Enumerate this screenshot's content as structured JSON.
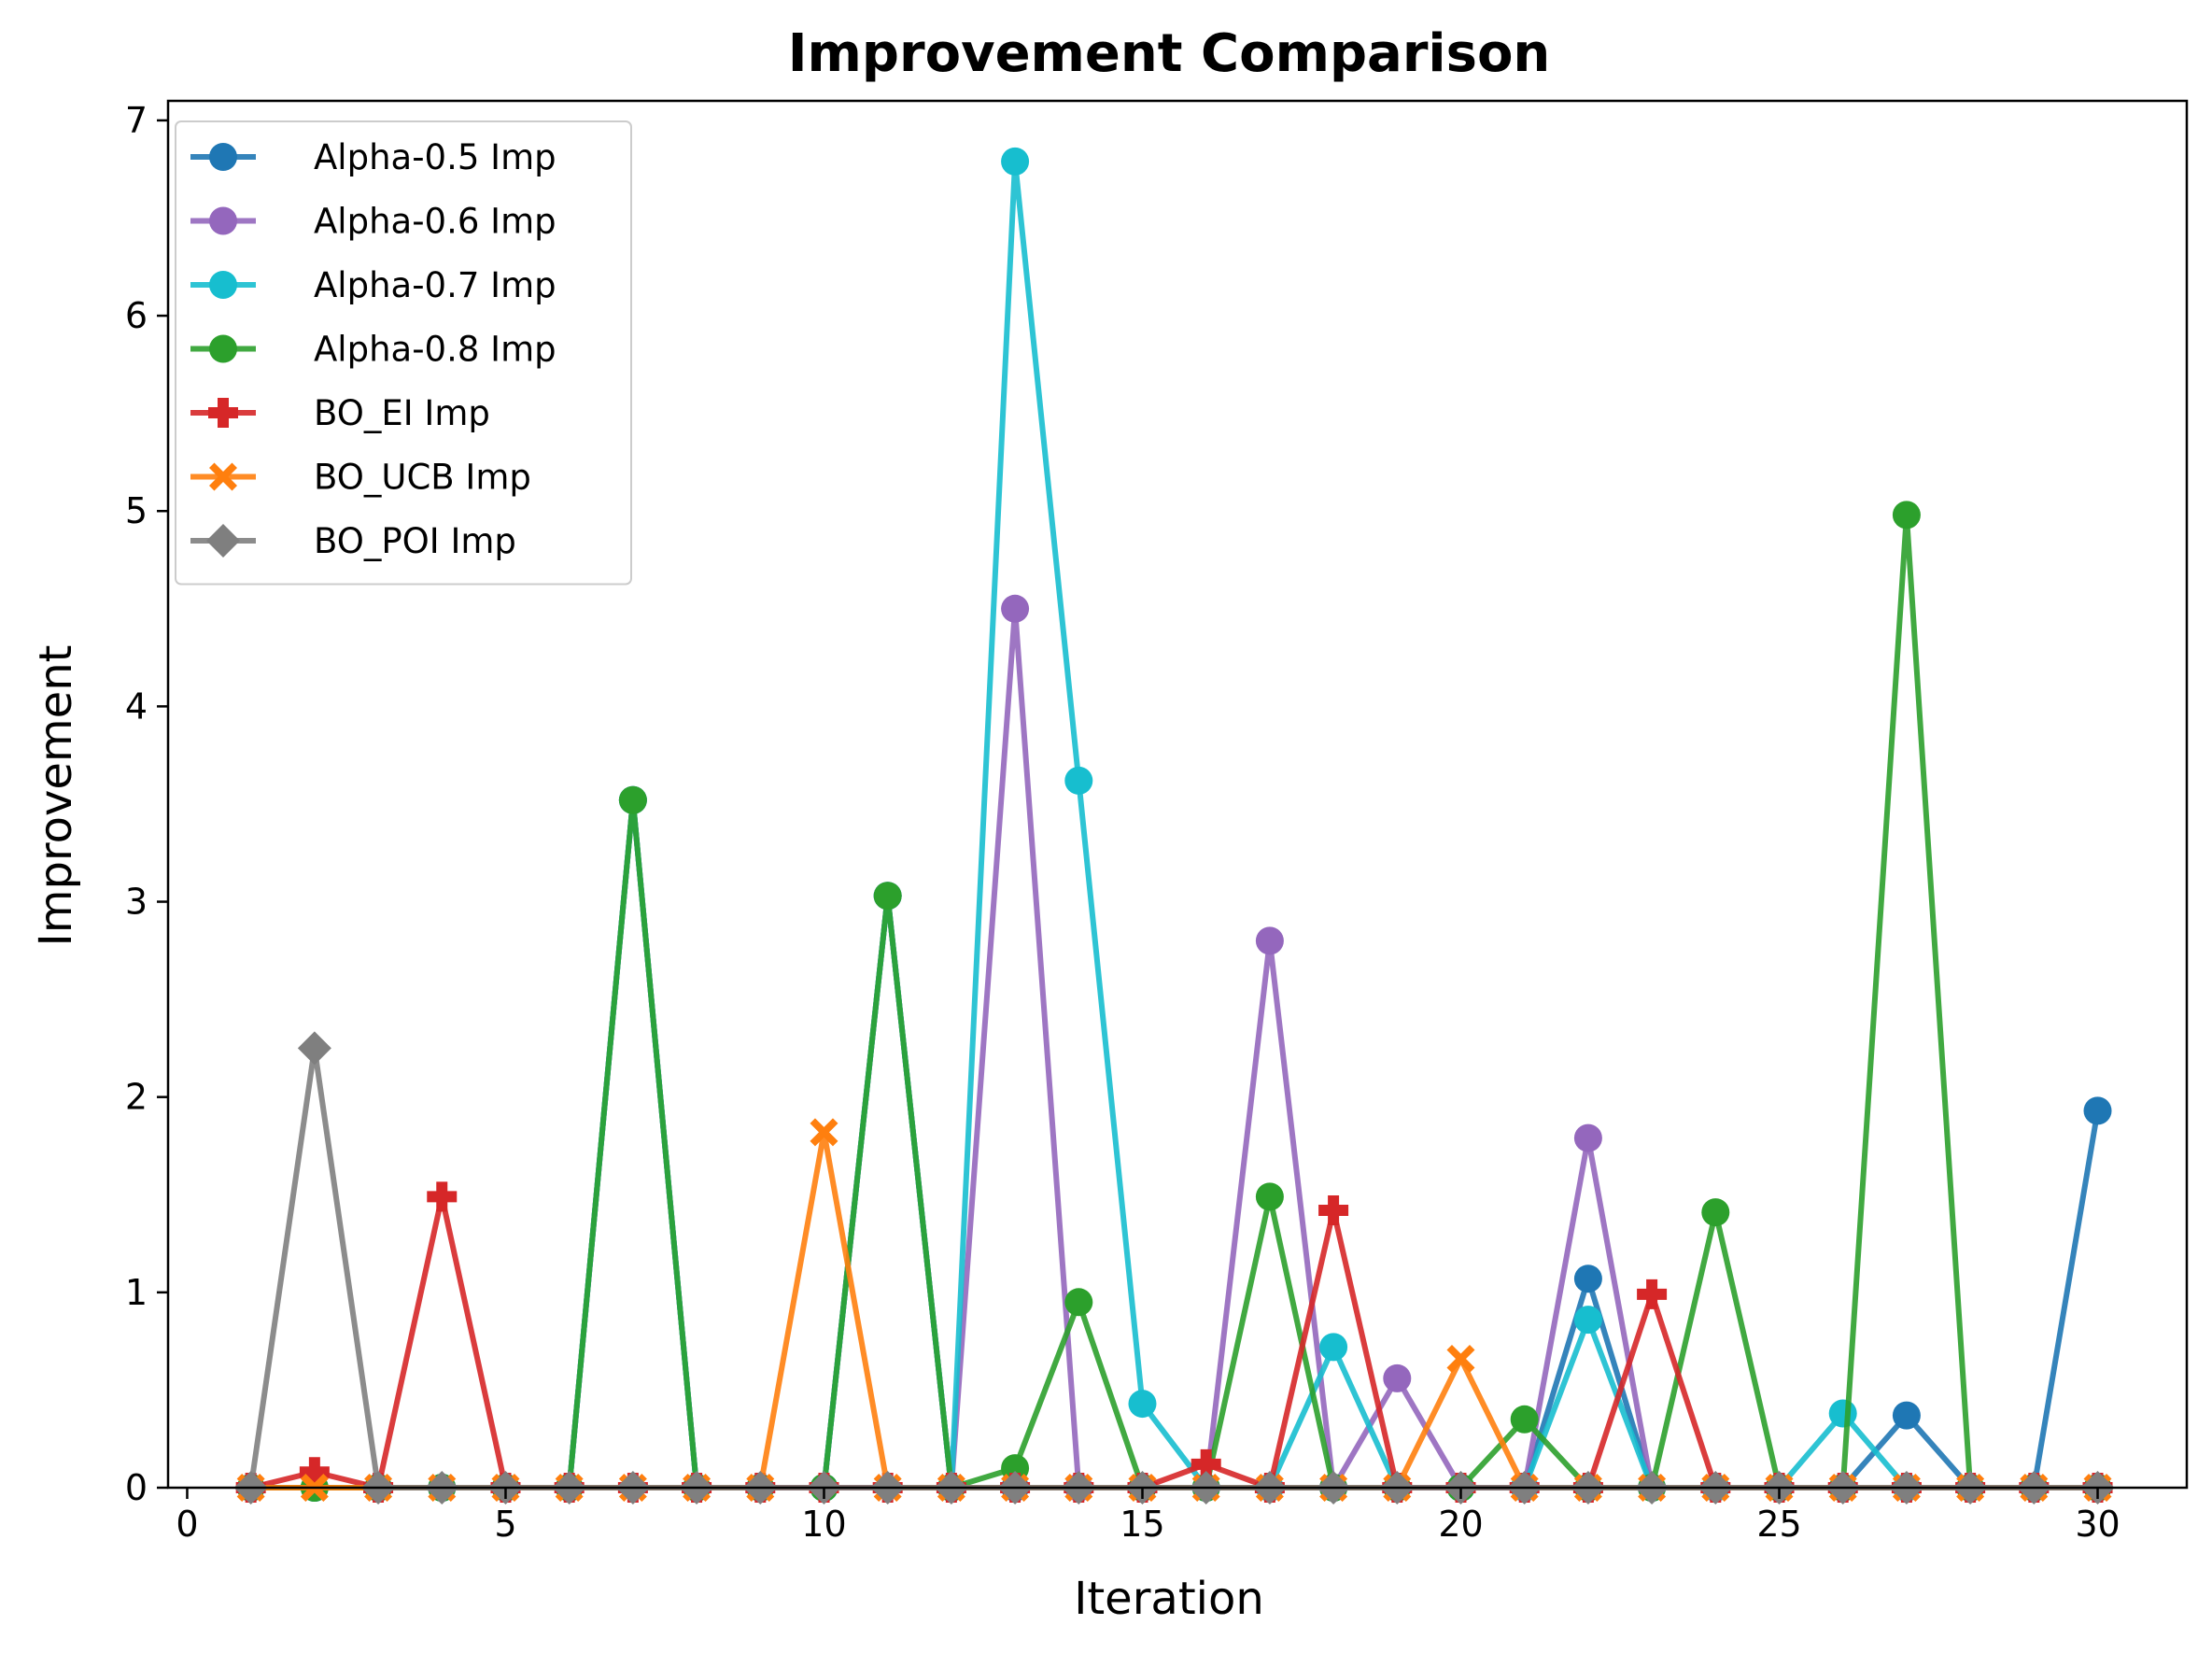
{
  "chart_data": {
    "type": "line",
    "title": "Improvement Comparison",
    "xlabel": "Iteration",
    "ylabel": "Improvement",
    "xlim": [
      -0.3,
      31.4
    ],
    "ylim": [
      0,
      7.1
    ],
    "xticks": [
      0,
      5,
      10,
      15,
      20,
      25,
      30
    ],
    "yticks": [
      0,
      1,
      2,
      3,
      4,
      5,
      6,
      7
    ],
    "grid": false,
    "legend_position": "upper-left",
    "x": [
      1,
      2,
      3,
      4,
      5,
      6,
      7,
      8,
      9,
      10,
      11,
      12,
      13,
      14,
      15,
      16,
      17,
      18,
      19,
      20,
      21,
      22,
      23,
      24,
      25,
      26,
      27,
      28,
      29,
      30
    ],
    "series": [
      {
        "name": "Alpha-0.5 Imp",
        "color": "#1f77b4",
        "marker": "circle",
        "values": [
          0,
          0,
          0,
          0,
          0,
          0,
          3.52,
          0,
          0,
          0,
          3.03,
          0,
          0,
          0,
          0,
          0,
          0,
          0,
          0,
          0,
          0,
          1.07,
          0,
          0,
          0,
          0,
          0.37,
          0,
          0,
          1.93
        ]
      },
      {
        "name": "Alpha-0.6 Imp",
        "color": "#9467bd",
        "marker": "circle",
        "values": [
          0,
          0,
          0,
          0,
          0,
          0,
          3.52,
          0,
          0,
          0,
          3.03,
          0,
          4.5,
          0,
          0,
          0,
          2.8,
          0,
          0.56,
          0,
          0,
          1.79,
          0,
          0,
          0,
          0,
          0,
          0,
          0,
          0
        ]
      },
      {
        "name": "Alpha-0.7 Imp",
        "color": "#17becf",
        "marker": "circle",
        "values": [
          0,
          0,
          0,
          0,
          0,
          0,
          3.52,
          0,
          0,
          0,
          3.03,
          0,
          6.79,
          3.62,
          0.43,
          0,
          0,
          0.72,
          0,
          0,
          0,
          0.86,
          0,
          0,
          0,
          0.38,
          0,
          0,
          0,
          0
        ]
      },
      {
        "name": "Alpha-0.8 Imp",
        "color": "#2ca02c",
        "marker": "circle",
        "values": [
          0,
          0,
          0,
          0,
          0,
          0,
          3.52,
          0,
          0,
          0,
          3.03,
          0,
          0.1,
          0.95,
          0,
          0,
          1.49,
          0,
          0,
          0,
          0.35,
          0,
          0,
          1.41,
          0,
          0,
          4.98,
          0,
          0,
          0
        ]
      },
      {
        "name": "BO_EI Imp",
        "color": "#d62728",
        "marker": "plus",
        "values": [
          0,
          0.08,
          0,
          1.49,
          0,
          0,
          0,
          0,
          0,
          0,
          0,
          0,
          0,
          0,
          0,
          0.12,
          0,
          1.42,
          0,
          0,
          0,
          0,
          0.99,
          0,
          0,
          0,
          0,
          0,
          0,
          0
        ]
      },
      {
        "name": "BO_UCB Imp",
        "color": "#ff7f0e",
        "marker": "x",
        "values": [
          0,
          0,
          0,
          0,
          0,
          0,
          0,
          0,
          0,
          1.82,
          0,
          0,
          0,
          0,
          0,
          0,
          0,
          0,
          0,
          0.66,
          0,
          0,
          0,
          0,
          0,
          0,
          0,
          0,
          0,
          0
        ]
      },
      {
        "name": "BO_POI Imp",
        "color": "#7f7f7f",
        "marker": "diamond",
        "values": [
          0,
          2.25,
          0,
          0,
          0,
          0,
          0,
          0,
          0,
          0,
          0,
          0,
          0,
          0,
          0,
          0,
          0,
          0,
          0,
          0,
          0,
          0,
          0,
          0,
          0,
          0,
          0,
          0,
          0,
          0
        ]
      }
    ]
  }
}
